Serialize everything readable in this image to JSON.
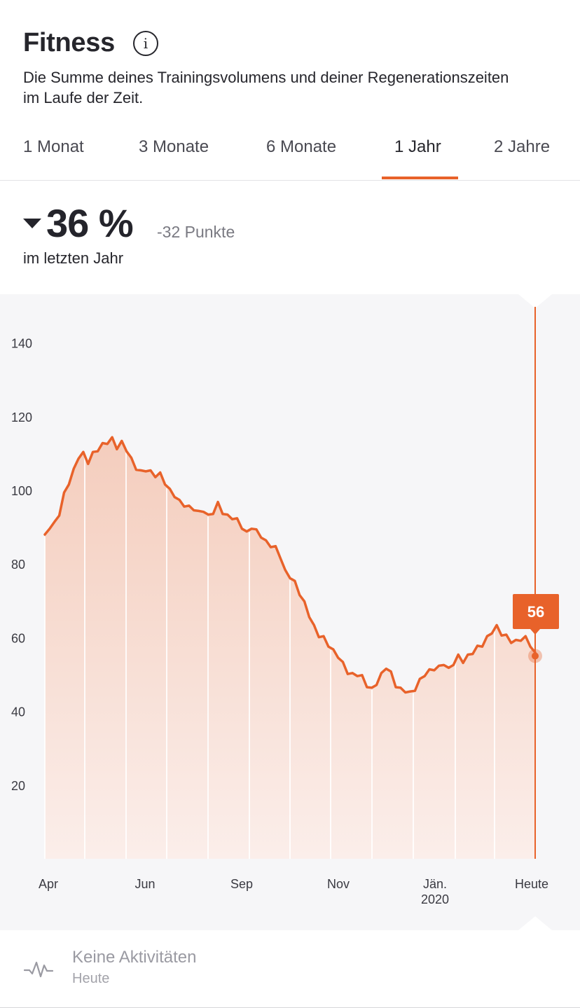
{
  "header": {
    "title": "Fitness",
    "info_icon": "info-icon",
    "subtitle": "Die Summe deines Trainingsvolumens und deiner Regenerationszeiten im Laufe der Zeit."
  },
  "tabs": [
    {
      "label": "1 Monat",
      "active": false
    },
    {
      "label": "3 Monate",
      "active": false
    },
    {
      "label": "6 Monate",
      "active": false
    },
    {
      "label": "1 Jahr",
      "active": true
    },
    {
      "label": "2 Jahre",
      "active": false
    }
  ],
  "summary": {
    "trend_icon": "triangle-down-icon",
    "percent": "36 %",
    "delta": "-32 Punkte",
    "period": "im letzten Jahr"
  },
  "colors": {
    "accent": "#e8622a",
    "fill_top": "#f4cdbd",
    "fill_bottom": "#fbeeea",
    "chart_bg": "#f6f6f8"
  },
  "chart_data": {
    "type": "area",
    "title": "",
    "xlabel": "",
    "ylabel": "",
    "ylim": [
      0,
      150
    ],
    "yticks": [
      20,
      40,
      60,
      80,
      100,
      120,
      140
    ],
    "xticks": [
      {
        "label": "Apr",
        "sub": ""
      },
      {
        "label": "Jun",
        "sub": ""
      },
      {
        "label": "Sep",
        "sub": ""
      },
      {
        "label": "Nov",
        "sub": ""
      },
      {
        "label": "Jän.",
        "sub": "2020"
      },
      {
        "label": "Heute",
        "sub": ""
      }
    ],
    "grid": "vertical",
    "series": [
      {
        "values": [
          88,
          90,
          91,
          94,
          99,
          102,
          105,
          109,
          110,
          108,
          110,
          111,
          112,
          113,
          114,
          112,
          113,
          111,
          108,
          106,
          105,
          106,
          105,
          104,
          104,
          102,
          100,
          99,
          97,
          96,
          95,
          95,
          94,
          95,
          93,
          94,
          96,
          94,
          93,
          93,
          92,
          90,
          88,
          90,
          89,
          88,
          86,
          85,
          84,
          82,
          78,
          77,
          75,
          72,
          69,
          66,
          63,
          61,
          60,
          58,
          56,
          55,
          53,
          51,
          50,
          50,
          49,
          47,
          46,
          48,
          50,
          52,
          50,
          47,
          46,
          46,
          45,
          46,
          48,
          50,
          51,
          52,
          52,
          53,
          51,
          53,
          55,
          54,
          55,
          56,
          57,
          58,
          60,
          62,
          63,
          61,
          60,
          59,
          59,
          60,
          60,
          58,
          56
        ]
      }
    ],
    "selected": {
      "label": "Heute",
      "value": 56,
      "badge": "56"
    }
  },
  "activity": {
    "icon": "activity-pulse-icon",
    "title": "Keine Aktivitäten",
    "subtitle": "Heute"
  }
}
